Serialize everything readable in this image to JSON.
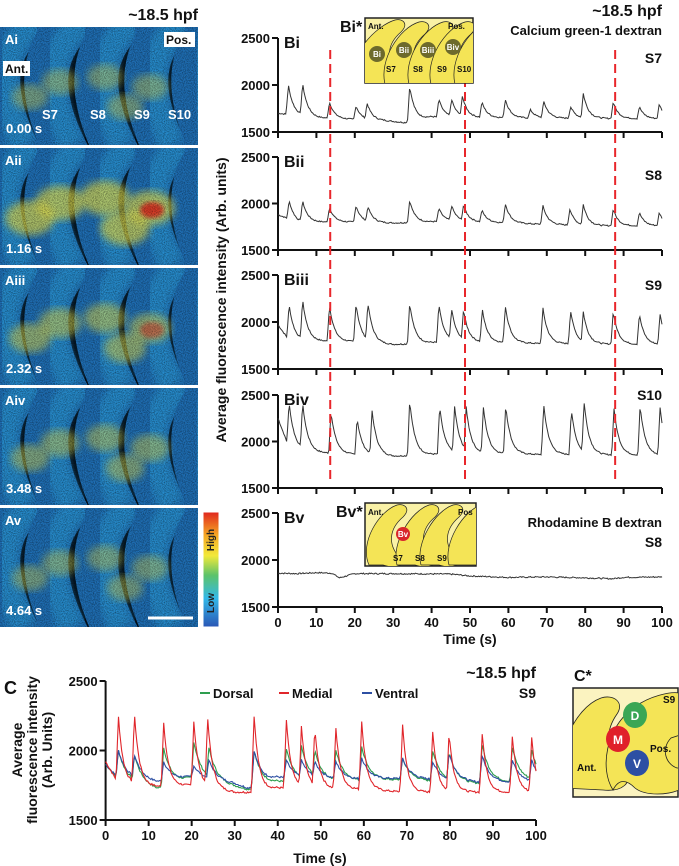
{
  "panel_a": {
    "title": "~18.5 hpf",
    "frames": [
      {
        "label": "Ai",
        "time": "0.00 s"
      },
      {
        "label": "Aii",
        "time": "1.16 s"
      },
      {
        "label": "Aiii",
        "time": "2.32 s"
      },
      {
        "label": "Aiv",
        "time": "3.48 s"
      },
      {
        "label": "Av",
        "time": "4.64 s"
      }
    ],
    "ant": "Ant.",
    "pos": "Pos.",
    "segments": [
      "S7",
      "S8",
      "S9",
      "S10"
    ],
    "colorbar": {
      "high": "High",
      "low": "Low",
      "colors": [
        "#e0261e",
        "#f5a623",
        "#f2e93a",
        "#5cc36a",
        "#33b8e8",
        "#2a56b5"
      ]
    }
  },
  "panel_b": {
    "title": "~18.5 hpf",
    "dye": "Calcium green-1 dextran",
    "control_dye": "Rhodamine B dextran",
    "ylabel": "Average fluorescence intensity (Arb. units)",
    "xlabel": "Time (s)",
    "marker_times": [
      13.6,
      48.7,
      87.8
    ],
    "marker_color": "#e8262b",
    "inset_top": {
      "label": "Bi*",
      "ant": "Ant.",
      "pos": "Pos.",
      "rois": [
        "Bi",
        "Bii",
        "Biii",
        "Biv"
      ],
      "segments": [
        "S7",
        "S8",
        "S9",
        "S10"
      ],
      "roi_color": "#6d6a2c"
    },
    "inset_bottom": {
      "label": "Bv*",
      "ant": "Ant.",
      "pos": "Pos",
      "rois": [
        "Bv"
      ],
      "segments": [
        "S7",
        "S8",
        "S9"
      ],
      "roi_color": "#d8262b"
    }
  },
  "panel_c": {
    "label": "C",
    "title": "~18.5 hpf",
    "segment": "S9",
    "ylabel_lines": [
      "Average",
      "fluorescence intensity",
      "(Arb. Units)"
    ],
    "xlabel": "Time (s)",
    "inset": {
      "label": "C*",
      "segment": "S9",
      "ant": "Ant.",
      "pos": "Pos.",
      "rois": [
        {
          "label": "D",
          "color": "#3aa655"
        },
        {
          "label": "M",
          "color": "#e0202a"
        },
        {
          "label": "V",
          "color": "#2d4fa3"
        }
      ]
    }
  },
  "chart_data": [
    {
      "type": "line",
      "panel_label": "Bi",
      "segment": "S7",
      "xlim": [
        0,
        100
      ],
      "ylim": [
        1500,
        2500
      ],
      "yticks": [
        1500,
        2000,
        2500
      ],
      "xticks": [
        0,
        10,
        20,
        30,
        40,
        50,
        60,
        70,
        80,
        90,
        100
      ],
      "series": [
        {
          "color": "#333333",
          "baseline": [
            [
              0,
              1700
            ],
            [
              10,
              1650
            ],
            [
              28,
              1620
            ],
            [
              33,
              1600
            ],
            [
              40,
              1660
            ],
            [
              60,
              1650
            ],
            [
              100,
              1640
            ]
          ],
          "peaks": [
            [
              2.7,
              2000
            ],
            [
              6.4,
              2018
            ],
            [
              13.4,
              1820
            ],
            [
              20.3,
              1780
            ],
            [
              23.2,
              1810
            ],
            [
              34.3,
              1990
            ],
            [
              41.9,
              1850
            ],
            [
              45.2,
              1850
            ],
            [
              48,
              1885
            ],
            [
              53.1,
              1820
            ],
            [
              59.2,
              1850
            ],
            [
              65.7,
              1740
            ],
            [
              69.2,
              1830
            ],
            [
              76.2,
              1770
            ],
            [
              79.5,
              1910
            ],
            [
              87.3,
              1820
            ],
            [
              94.1,
              1770
            ],
            [
              99.3,
              1800
            ]
          ]
        }
      ]
    },
    {
      "type": "line",
      "panel_label": "Bii",
      "segment": "S8",
      "xlim": [
        0,
        100
      ],
      "ylim": [
        1500,
        2500
      ],
      "yticks": [
        1500,
        2000,
        2500
      ],
      "xticks": [
        0,
        10,
        20,
        30,
        40,
        50,
        60,
        70,
        80,
        90,
        100
      ],
      "series": [
        {
          "color": "#333333",
          "baseline": [
            [
              0,
              1880
            ],
            [
              5,
              1800
            ],
            [
              20,
              1800
            ],
            [
              30,
              1790
            ],
            [
              45,
              1810
            ],
            [
              60,
              1790
            ],
            [
              80,
              1760
            ],
            [
              100,
              1760
            ]
          ],
          "peaks": [
            [
              2.9,
              2030
            ],
            [
              6.4,
              2030
            ],
            [
              13.4,
              1960
            ],
            [
              20.3,
              1980
            ],
            [
              23.4,
              1970
            ],
            [
              34.3,
              2035
            ],
            [
              41.9,
              1950
            ],
            [
              45.2,
              1980
            ],
            [
              48.3,
              1985
            ],
            [
              53.1,
              1930
            ],
            [
              59.2,
              2000
            ],
            [
              69,
              1975
            ],
            [
              76,
              1940
            ],
            [
              79.5,
              1990
            ],
            [
              87.3,
              1940
            ],
            [
              94.1,
              1905
            ],
            [
              99.3,
              1905
            ]
          ]
        }
      ]
    },
    {
      "type": "line",
      "panel_label": "Biii",
      "segment": "S9",
      "xlim": [
        0,
        100
      ],
      "ylim": [
        1500,
        2500
      ],
      "yticks": [
        1500,
        2000,
        2500
      ],
      "xticks": [
        0,
        10,
        20,
        30,
        40,
        50,
        60,
        70,
        80,
        90,
        100
      ],
      "series": [
        {
          "color": "#333333",
          "baseline": [
            [
              0,
              1970
            ],
            [
              3,
              1800
            ],
            [
              20,
              1790
            ],
            [
              30,
              1760
            ],
            [
              45,
              1790
            ],
            [
              70,
              1770
            ],
            [
              100,
              1760
            ]
          ],
          "peaks": [
            [
              2.9,
              2190
            ],
            [
              6.4,
              2240
            ],
            [
              13.4,
              2180
            ],
            [
              20.3,
              2200
            ],
            [
              23.4,
              2210
            ],
            [
              34.3,
              2205
            ],
            [
              41.9,
              2190
            ],
            [
              45.2,
              2145
            ],
            [
              48.3,
              2135
            ],
            [
              53.2,
              2135
            ],
            [
              59.2,
              2175
            ],
            [
              69,
              2145
            ],
            [
              76.2,
              2120
            ],
            [
              79.5,
              2110
            ],
            [
              87.3,
              2110
            ],
            [
              94.1,
              2085
            ],
            [
              99.5,
              2085
            ]
          ]
        }
      ]
    },
    {
      "type": "line",
      "panel_label": "Biv",
      "segment": "S10",
      "xlim": [
        0,
        100
      ],
      "ylim": [
        1500,
        2500
      ],
      "yticks": [
        1500,
        2000,
        2500
      ],
      "xticks": [
        0,
        10,
        20,
        30,
        40,
        50,
        60,
        70,
        80,
        90,
        100
      ],
      "series": [
        {
          "color": "#333333",
          "baseline": [
            [
              0,
              2250
            ],
            [
              3,
              1920
            ],
            [
              10,
              1880
            ],
            [
              30,
              1840
            ],
            [
              45,
              1870
            ],
            [
              70,
              1860
            ],
            [
              100,
              1850
            ]
          ],
          "peaks": [
            [
              2.9,
              2430
            ],
            [
              6.4,
              2420
            ],
            [
              13.8,
              2320
            ],
            [
              20.6,
              2250
            ],
            [
              24.5,
              2330
            ],
            [
              34.3,
              2445
            ],
            [
              42.1,
              2380
            ],
            [
              46,
              2375
            ],
            [
              49,
              2375
            ],
            [
              53.5,
              2365
            ],
            [
              59.3,
              2390
            ],
            [
              69.2,
              2400
            ],
            [
              76.4,
              2340
            ],
            [
              79.7,
              2435
            ],
            [
              87.5,
              2355
            ],
            [
              94.3,
              2385
            ],
            [
              99.5,
              2370
            ]
          ]
        }
      ]
    },
    {
      "type": "line",
      "panel_label": "Bv",
      "segment": "S8",
      "xlim": [
        0,
        100
      ],
      "ylim": [
        1500,
        2500
      ],
      "yticks": [
        1500,
        2000,
        2500
      ],
      "xticks": [
        0,
        10,
        20,
        30,
        40,
        50,
        60,
        70,
        80,
        90,
        100
      ],
      "series": [
        {
          "color": "#333333",
          "baseline": [
            [
              0,
              1860
            ],
            [
              5,
              1855
            ],
            [
              10,
              1865
            ],
            [
              14,
              1860
            ],
            [
              16,
              1810
            ],
            [
              20,
              1855
            ],
            [
              30,
              1855
            ],
            [
              45,
              1850
            ],
            [
              50,
              1830
            ],
            [
              60,
              1815
            ],
            [
              70,
              1820
            ],
            [
              80,
              1810
            ],
            [
              87,
              1800
            ],
            [
              90,
              1815
            ],
            [
              100,
              1820
            ]
          ],
          "peaks": []
        }
      ]
    },
    {
      "type": "line",
      "panel_label": "C",
      "segment": "S9",
      "xlim": [
        0,
        100
      ],
      "ylim": [
        1500,
        2500
      ],
      "yticks": [
        1500,
        2000,
        2500
      ],
      "xticks": [
        0,
        10,
        20,
        30,
        40,
        50,
        60,
        70,
        80,
        90,
        100
      ],
      "legend": "top-center",
      "series": [
        {
          "name": "Dorsal",
          "color": "#2e9e4f",
          "baseline": [
            [
              0,
              1900
            ],
            [
              3,
              1790
            ],
            [
              12,
              1720
            ],
            [
              20,
              1800
            ],
            [
              30,
              1740
            ],
            [
              33,
              1720
            ],
            [
              40,
              1770
            ],
            [
              60,
              1780
            ],
            [
              70,
              1790
            ],
            [
              85,
              1760
            ],
            [
              100,
              1780
            ]
          ],
          "peaks": [
            [
              3,
              2000
            ],
            [
              6.7,
              1970
            ],
            [
              13.5,
              2020
            ],
            [
              20.5,
              2060
            ],
            [
              24,
              2020
            ],
            [
              34.5,
              2000
            ],
            [
              42,
              2010
            ],
            [
              45.5,
              2030
            ],
            [
              48.6,
              2000
            ],
            [
              53.5,
              2000
            ],
            [
              59.5,
              2030
            ],
            [
              69,
              1940
            ],
            [
              76,
              2000
            ],
            [
              79.8,
              1990
            ],
            [
              87.5,
              2040
            ],
            [
              94.5,
              2020
            ],
            [
              99,
              2000
            ]
          ]
        },
        {
          "name": "Medial",
          "color": "#e0262b",
          "baseline": [
            [
              0,
              1920
            ],
            [
              3,
              1760
            ],
            [
              12,
              1740
            ],
            [
              20,
              1750
            ],
            [
              30,
              1700
            ],
            [
              33,
              1700
            ],
            [
              40,
              1730
            ],
            [
              60,
              1720
            ],
            [
              70,
              1700
            ],
            [
              85,
              1700
            ],
            [
              100,
              1700
            ]
          ],
          "peaks": [
            [
              3,
              2240
            ],
            [
              6.7,
              2270
            ],
            [
              13.5,
              2200
            ],
            [
              20.5,
              2210
            ],
            [
              23.7,
              2240
            ],
            [
              34.5,
              2250
            ],
            [
              42,
              2220
            ],
            [
              45.5,
              2170
            ],
            [
              48.6,
              2160
            ],
            [
              53.5,
              2160
            ],
            [
              59.5,
              2210
            ],
            [
              69,
              2180
            ],
            [
              76,
              2140
            ],
            [
              79.8,
              2130
            ],
            [
              87.5,
              2120
            ],
            [
              94.5,
              2100
            ],
            [
              99,
              2090
            ]
          ]
        },
        {
          "name": "Ventral",
          "color": "#2d4fa3",
          "baseline": [
            [
              0,
              1900
            ],
            [
              3,
              1800
            ],
            [
              12,
              1770
            ],
            [
              20,
              1810
            ],
            [
              30,
              1760
            ],
            [
              33,
              1730
            ],
            [
              40,
              1800
            ],
            [
              60,
              1790
            ],
            [
              70,
              1800
            ],
            [
              85,
              1770
            ],
            [
              100,
              1770
            ]
          ],
          "peaks": [
            [
              3,
              2000
            ],
            [
              6.7,
              1970
            ],
            [
              13.5,
              1920
            ],
            [
              20.5,
              1890
            ],
            [
              24,
              1930
            ],
            [
              34.5,
              2000
            ],
            [
              42,
              1930
            ],
            [
              45.5,
              1930
            ],
            [
              48.6,
              1920
            ],
            [
              53.5,
              1920
            ],
            [
              59.5,
              1950
            ],
            [
              69,
              1940
            ],
            [
              76,
              1920
            ],
            [
              79.8,
              1980
            ],
            [
              87.5,
              1960
            ],
            [
              94.5,
              1930
            ],
            [
              99,
              1930
            ]
          ]
        }
      ]
    }
  ]
}
